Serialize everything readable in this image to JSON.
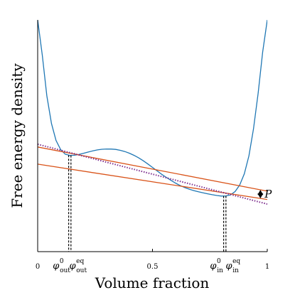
{
  "chart_data": {
    "type": "line",
    "title": "",
    "xlabel": "Volume fraction",
    "ylabel": "Free energy density",
    "xlim": [
      0,
      1
    ],
    "x_ticks": [
      {
        "x": 0,
        "label": "0"
      },
      {
        "x": 0.5,
        "label": "0.5"
      },
      {
        "x": 1,
        "label": "1"
      }
    ],
    "y_ticks": [],
    "grid": false,
    "legend": "none",
    "phi_labels": [
      {
        "x": 0.135,
        "symbol": "φ",
        "sup": "0",
        "sub": "out"
      },
      {
        "x": 0.145,
        "symbol": "φ",
        "sup": "eq",
        "sub": "out"
      },
      {
        "x": 0.81,
        "symbol": "φ",
        "sup": "0",
        "sub": "in"
      },
      {
        "x": 0.82,
        "symbol": "φ",
        "sup": "eq",
        "sub": "in"
      }
    ],
    "dashed_markers": [
      0.135,
      0.145,
      0.81,
      0.82
    ],
    "annotation": {
      "label": "P",
      "x": 0.97
    },
    "series": [
      {
        "kind": "free-energy-curve",
        "color": "#1f77b4",
        "x": [
          0.0,
          0.02,
          0.04,
          0.06,
          0.08,
          0.1,
          0.12,
          0.14,
          0.16,
          0.18,
          0.2,
          0.22,
          0.24,
          0.26,
          0.28,
          0.3,
          0.32,
          0.34,
          0.36,
          0.38,
          0.4,
          0.42,
          0.44,
          0.46,
          0.48,
          0.5,
          0.52,
          0.54,
          0.56,
          0.58,
          0.6,
          0.62,
          0.64,
          0.66,
          0.68,
          0.7,
          0.72,
          0.74,
          0.76,
          0.78,
          0.8,
          0.82,
          0.84,
          0.86,
          0.88,
          0.9,
          0.92,
          0.94,
          0.96,
          0.98,
          1.0
        ],
        "y": [
          10.3,
          8.0,
          5.35,
          3.55,
          2.45,
          1.85,
          1.55,
          1.47,
          1.48,
          1.53,
          1.61,
          1.69,
          1.77,
          1.83,
          1.87,
          1.89,
          1.885,
          1.86,
          1.8,
          1.72,
          1.61,
          1.47,
          1.31,
          1.12,
          0.91,
          0.69,
          0.46,
          0.24,
          0.04,
          -0.15,
          -0.33,
          -0.49,
          -0.62,
          -0.73,
          -0.82,
          -0.9,
          -0.97,
          -1.03,
          -1.09,
          -1.14,
          -1.18,
          -1.17,
          -1.1,
          -0.88,
          -0.46,
          0.27,
          1.45,
          3.2,
          5.5,
          8.2,
          10.3
        ]
      },
      {
        "kind": "tangent-upper",
        "color": "#d95319",
        "x": [
          0.0,
          1.0
        ],
        "y": [
          2.02,
          -0.86
        ]
      },
      {
        "kind": "tangent-lower",
        "color": "#d95319",
        "x": [
          0.0,
          1.0
        ],
        "y": [
          0.9,
          -1.4
        ]
      },
      {
        "kind": "common-tangent-dotted",
        "color": "#7e2f8e",
        "x": [
          0.0,
          1.0
        ],
        "y": [
          2.2,
          -1.7
        ]
      }
    ]
  }
}
